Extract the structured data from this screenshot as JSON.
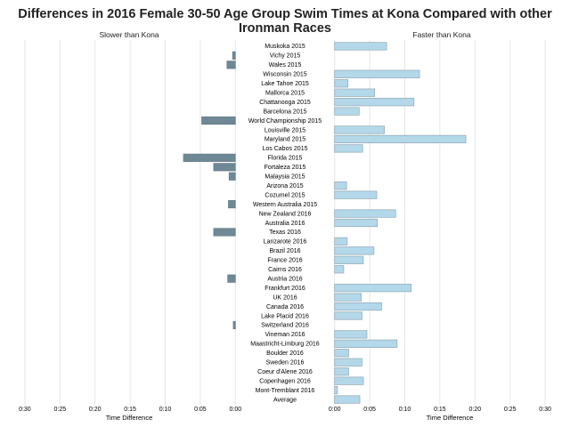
{
  "chart_data": {
    "type": "bar",
    "orientation": "horizontal",
    "title": "Differences in 2016 Female 30-50 Age Group Swim Times at Kona Compared with other Ironman Races",
    "left_panel_title": "Slower than Kona",
    "right_panel_title": "Faster than Kona",
    "xlabel": "Time Difference",
    "value_unit": "minutes",
    "xlim": [
      0,
      30
    ],
    "tick_labels": [
      "0:00",
      "0:05",
      "0:10",
      "0:15",
      "0:20",
      "0:25",
      "0:30"
    ],
    "grid": true,
    "colors": {
      "slower": "#6e8896",
      "faster": "#b3d8ea",
      "faster_edge": "#8fa6b2"
    },
    "categories": [
      "Muskoka 2015",
      "Vichy 2015",
      "Wales 2015",
      "Wisconsin 2015",
      "Lake Tahoe 2015",
      "Mallorca 2015",
      "Chattanooga 2015",
      "Barcelona 2015",
      "World Championship 2015",
      "Louisville 2015",
      "Maryland 2015",
      "Los Cabos 2015",
      "Florida 2015",
      "Fortaleza 2015",
      "Malaysia 2015",
      "Arizona 2015",
      "Cozumel 2015",
      "Western Australia 2015",
      "New Zealand 2016",
      "Australia 2016",
      "Texas 2016",
      "Lanzarote 2016",
      "Brazil 2016",
      "France 2016",
      "Cairns 2016",
      "Austria 2016",
      "Frankfurt 2016",
      "UK 2016",
      "Canada 2016",
      "Lake Placid 2016",
      "Switzerland 2016",
      "Vineman 2016",
      "Maastricht-Limburg 2016",
      "Boulder 2016",
      "Sweden 2016",
      "Coeur d'Alene 2016",
      "Copenhagen 2016",
      "Mont-Tremblant 2016",
      "Average"
    ],
    "series": [
      {
        "name": "Slower than Kona",
        "values": [
          0,
          0.4,
          1.2,
          0,
          0,
          0,
          0,
          0,
          4.8,
          0,
          0,
          0,
          7.4,
          3.1,
          0.9,
          0,
          0,
          1.0,
          0,
          0,
          3.1,
          0,
          0,
          0,
          0,
          1.1,
          0,
          0,
          0,
          0,
          0.3,
          0,
          0,
          0,
          0,
          0,
          0,
          0,
          0
        ]
      },
      {
        "name": "Faster than Kona",
        "values": [
          7.4,
          0,
          0,
          12.1,
          1.9,
          5.7,
          11.3,
          3.5,
          0,
          7.1,
          18.7,
          4.0,
          0,
          0,
          0,
          1.7,
          6.0,
          0,
          8.7,
          6.1,
          0,
          1.8,
          5.6,
          4.1,
          1.3,
          0,
          10.9,
          3.8,
          6.7,
          3.9,
          0,
          4.6,
          8.9,
          2.0,
          3.9,
          2.0,
          4.1,
          0.4,
          3.6
        ]
      }
    ]
  }
}
